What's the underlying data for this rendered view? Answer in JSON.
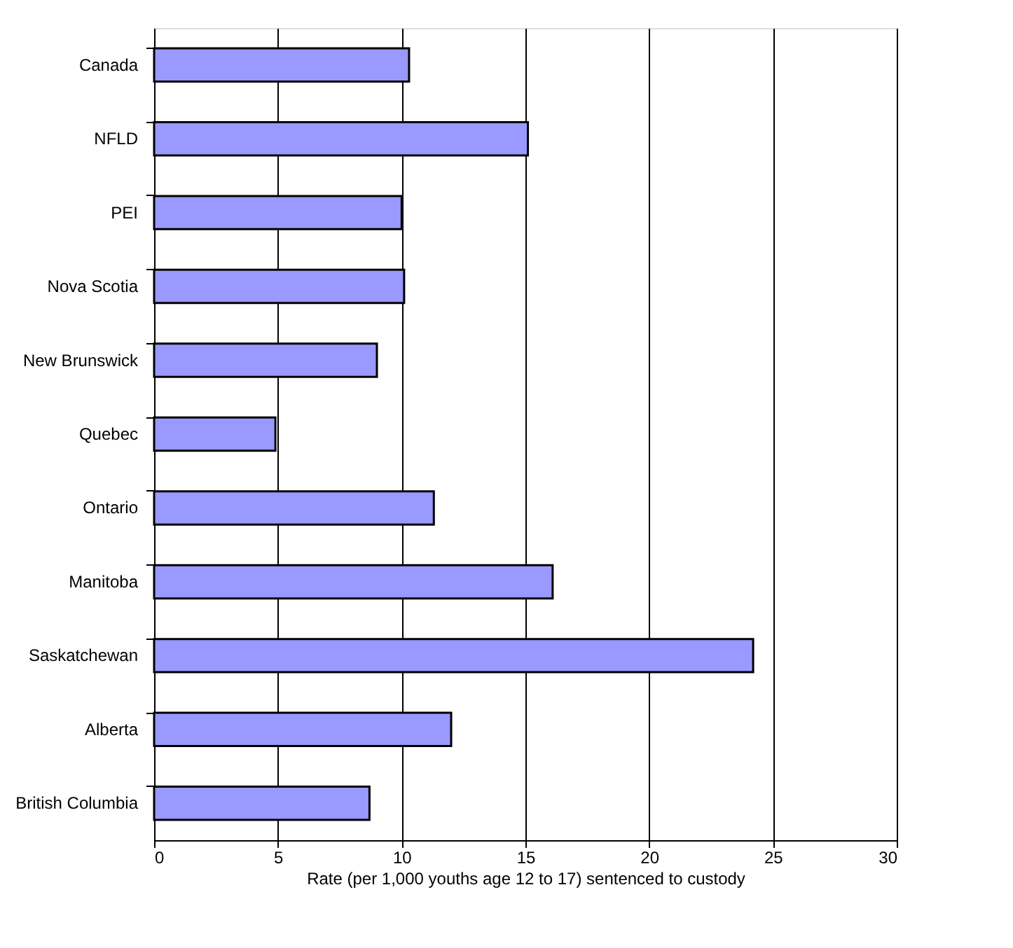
{
  "chart_data": {
    "type": "bar",
    "orientation": "horizontal",
    "xlabel": "Rate (per 1,000 youths age 12 to 17) sentenced to custody",
    "categories": [
      "Canada",
      "NFLD",
      "PEI",
      "Nova Scotia",
      "New Brunswick",
      "Quebec",
      "Ontario",
      "Manitoba",
      "Saskatchewan",
      "Alberta",
      "British Columbia"
    ],
    "values": [
      10.3,
      15.1,
      10.0,
      10.1,
      9.0,
      4.9,
      11.3,
      16.1,
      24.2,
      12.0,
      8.7
    ],
    "color": "#9999ff",
    "xlim": [
      0,
      30
    ],
    "xticks": [
      0,
      5,
      10,
      15,
      20,
      25,
      30
    ],
    "grid": "x"
  }
}
